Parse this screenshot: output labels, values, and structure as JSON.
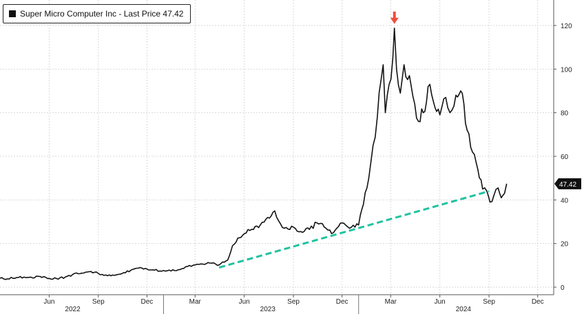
{
  "legend": {
    "series_label": "Super Micro Computer Inc - Last Price",
    "last_value_text": "47.42"
  },
  "colors": {
    "price_line": "#111111",
    "trendline": "#20c2a0",
    "peak_marker": "#f04e3e",
    "grid": "#d9d9d9",
    "last_price_tag": "#111111"
  },
  "chart_data": {
    "type": "line",
    "title": "",
    "xlabel": "",
    "ylabel": "",
    "ylim": [
      0,
      130
    ],
    "xlim": [
      "2022-03-01",
      "2024-12-31"
    ],
    "y_ticks": [
      0,
      20,
      40,
      60,
      80,
      100,
      120
    ],
    "x_ticks": [
      {
        "label": "Jun",
        "date": "2022-06-01"
      },
      {
        "label": "Sep",
        "date": "2022-09-01"
      },
      {
        "label": "Dec",
        "date": "2022-12-01"
      },
      {
        "label": "Mar",
        "date": "2023-03-01"
      },
      {
        "label": "Jun",
        "date": "2023-06-01"
      },
      {
        "label": "Sep",
        "date": "2023-09-01"
      },
      {
        "label": "Dec",
        "date": "2023-12-01"
      },
      {
        "label": "Mar",
        "date": "2024-03-01"
      },
      {
        "label": "Jun",
        "date": "2024-06-01"
      },
      {
        "label": "Sep",
        "date": "2024-09-01"
      },
      {
        "label": "Dec",
        "date": "2024-12-01"
      }
    ],
    "year_labels": [
      {
        "label": "2022",
        "date": "2022-07-15"
      },
      {
        "label": "2023",
        "date": "2023-07-15"
      },
      {
        "label": "2024",
        "date": "2024-07-15"
      }
    ],
    "grid": true,
    "legend_position": "top-left",
    "series": [
      {
        "name": "Super Micro Computer Inc - Last Price",
        "points": [
          [
            "2022-03-01",
            4.1
          ],
          [
            "2022-03-15",
            3.8
          ],
          [
            "2022-04-01",
            4.4
          ],
          [
            "2022-04-15",
            4.6
          ],
          [
            "2022-05-01",
            4.2
          ],
          [
            "2022-05-15",
            4.9
          ],
          [
            "2022-06-01",
            4.0
          ],
          [
            "2022-06-15",
            3.9
          ],
          [
            "2022-07-01",
            4.6
          ],
          [
            "2022-07-15",
            5.8
          ],
          [
            "2022-08-01",
            6.4
          ],
          [
            "2022-08-15",
            7.1
          ],
          [
            "2022-09-01",
            6.3
          ],
          [
            "2022-09-15",
            5.6
          ],
          [
            "2022-10-01",
            5.4
          ],
          [
            "2022-10-15",
            6.2
          ],
          [
            "2022-11-01",
            7.8
          ],
          [
            "2022-11-15",
            8.7
          ],
          [
            "2022-12-01",
            8.3
          ],
          [
            "2022-12-15",
            7.8
          ],
          [
            "2023-01-01",
            7.6
          ],
          [
            "2023-01-15",
            7.4
          ],
          [
            "2023-02-01",
            8.1
          ],
          [
            "2023-02-15",
            9.5
          ],
          [
            "2023-03-01",
            10.2
          ],
          [
            "2023-03-15",
            10.6
          ],
          [
            "2023-04-01",
            11.0
          ],
          [
            "2023-04-15",
            10.2
          ],
          [
            "2023-05-01",
            12.4
          ],
          [
            "2023-05-10",
            19.0
          ],
          [
            "2023-05-20",
            22.5
          ],
          [
            "2023-06-01",
            24.5
          ],
          [
            "2023-06-15",
            26.5
          ],
          [
            "2023-07-01",
            28.5
          ],
          [
            "2023-07-15",
            32.0
          ],
          [
            "2023-07-28",
            35.0
          ],
          [
            "2023-08-08",
            29.0
          ],
          [
            "2023-08-15",
            27.0
          ],
          [
            "2023-09-01",
            27.5
          ],
          [
            "2023-09-15",
            25.5
          ],
          [
            "2023-10-01",
            26.5
          ],
          [
            "2023-10-15",
            29.5
          ],
          [
            "2023-11-01",
            27.0
          ],
          [
            "2023-11-15",
            25.0
          ],
          [
            "2023-12-01",
            29.5
          ],
          [
            "2023-12-15",
            27.0
          ],
          [
            "2024-01-01",
            28.5
          ],
          [
            "2024-01-10",
            38.0
          ],
          [
            "2024-01-20",
            50.0
          ],
          [
            "2024-01-28",
            65.0
          ],
          [
            "2024-02-05",
            78.0
          ],
          [
            "2024-02-12",
            95.0
          ],
          [
            "2024-02-16",
            102.0
          ],
          [
            "2024-02-20",
            80.0
          ],
          [
            "2024-02-27",
            93.0
          ],
          [
            "2024-03-05",
            105.0
          ],
          [
            "2024-03-08",
            118.8
          ],
          [
            "2024-03-12",
            100.0
          ],
          [
            "2024-03-19",
            89.0
          ],
          [
            "2024-03-26",
            102.0
          ],
          [
            "2024-04-05",
            97.0
          ],
          [
            "2024-04-15",
            84.0
          ],
          [
            "2024-04-22",
            76.0
          ],
          [
            "2024-05-01",
            80.0
          ],
          [
            "2024-05-10",
            92.0
          ],
          [
            "2024-05-20",
            85.0
          ],
          [
            "2024-06-01",
            79.0
          ],
          [
            "2024-06-12",
            87.0
          ],
          [
            "2024-06-20",
            80.0
          ],
          [
            "2024-07-01",
            88.0
          ],
          [
            "2024-07-10",
            90.0
          ],
          [
            "2024-07-22",
            72.0
          ],
          [
            "2024-08-01",
            62.0
          ],
          [
            "2024-08-08",
            57.0
          ],
          [
            "2024-08-20",
            45.0
          ],
          [
            "2024-08-28",
            44.0
          ],
          [
            "2024-09-03",
            39.0
          ],
          [
            "2024-09-10",
            42.0
          ],
          [
            "2024-09-18",
            45.5
          ],
          [
            "2024-09-24",
            41.0
          ],
          [
            "2024-09-30",
            43.0
          ],
          [
            "2024-10-04",
            47.42
          ]
        ]
      }
    ],
    "trendline": {
      "points": [
        [
          "2023-04-15",
          9.0
        ],
        [
          "2024-09-01",
          44.0
        ]
      ]
    },
    "annotations": [
      {
        "type": "arrow-down",
        "date": "2024-03-08",
        "value": 118.8
      }
    ]
  }
}
